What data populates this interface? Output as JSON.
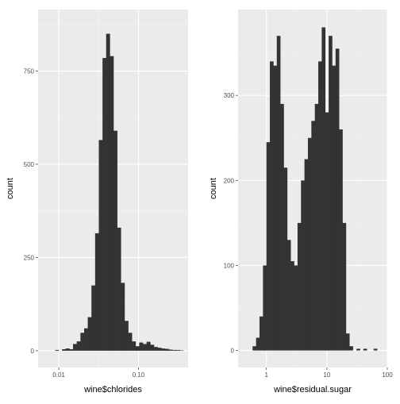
{
  "chart_data": [
    {
      "type": "bar",
      "subtype": "histogram",
      "xlabel": "wine$chlorides",
      "ylabel": "count",
      "x_scale": "log10",
      "xlim": [
        0.0055,
        0.42
      ],
      "ylim": [
        -45,
        915
      ],
      "x_ticks": [
        0.01,
        0.1
      ],
      "x_tick_labels": [
        "0.01",
        "0.10"
      ],
      "y_ticks": [
        0,
        250,
        500,
        750
      ],
      "y_tick_labels": [
        "0",
        "250",
        "500",
        "750"
      ],
      "grid": true,
      "bar_color": "#333333",
      "bins": [
        {
          "x0": 0.009,
          "x1": 0.01,
          "count": 2
        },
        {
          "x0": 0.011,
          "x1": 0.0122,
          "count": 4
        },
        {
          "x0": 0.0122,
          "x1": 0.0136,
          "count": 6
        },
        {
          "x0": 0.0136,
          "x1": 0.0151,
          "count": 4
        },
        {
          "x0": 0.0151,
          "x1": 0.0168,
          "count": 18
        },
        {
          "x0": 0.0168,
          "x1": 0.0187,
          "count": 25
        },
        {
          "x0": 0.0187,
          "x1": 0.0208,
          "count": 48
        },
        {
          "x0": 0.0208,
          "x1": 0.0231,
          "count": 60
        },
        {
          "x0": 0.0231,
          "x1": 0.0257,
          "count": 90
        },
        {
          "x0": 0.0257,
          "x1": 0.0286,
          "count": 175
        },
        {
          "x0": 0.0286,
          "x1": 0.0318,
          "count": 315
        },
        {
          "x0": 0.0318,
          "x1": 0.0354,
          "count": 565
        },
        {
          "x0": 0.0354,
          "x1": 0.0393,
          "count": 785
        },
        {
          "x0": 0.0393,
          "x1": 0.0437,
          "count": 850
        },
        {
          "x0": 0.0437,
          "x1": 0.0486,
          "count": 790
        },
        {
          "x0": 0.0486,
          "x1": 0.0541,
          "count": 590
        },
        {
          "x0": 0.0541,
          "x1": 0.0601,
          "count": 330
        },
        {
          "x0": 0.0601,
          "x1": 0.0669,
          "count": 182
        },
        {
          "x0": 0.0669,
          "x1": 0.0744,
          "count": 80
        },
        {
          "x0": 0.0744,
          "x1": 0.0827,
          "count": 48
        },
        {
          "x0": 0.0827,
          "x1": 0.092,
          "count": 25
        },
        {
          "x0": 0.092,
          "x1": 0.1023,
          "count": 12
        },
        {
          "x0": 0.1023,
          "x1": 0.1138,
          "count": 22
        },
        {
          "x0": 0.1138,
          "x1": 0.1265,
          "count": 18
        },
        {
          "x0": 0.1265,
          "x1": 0.1407,
          "count": 24
        },
        {
          "x0": 0.1407,
          "x1": 0.1564,
          "count": 16
        },
        {
          "x0": 0.1564,
          "x1": 0.174,
          "count": 10
        },
        {
          "x0": 0.174,
          "x1": 0.1935,
          "count": 8
        },
        {
          "x0": 0.1935,
          "x1": 0.2152,
          "count": 6
        },
        {
          "x0": 0.2152,
          "x1": 0.2393,
          "count": 5
        },
        {
          "x0": 0.2393,
          "x1": 0.2661,
          "count": 3
        },
        {
          "x0": 0.2661,
          "x1": 0.296,
          "count": 2
        },
        {
          "x0": 0.296,
          "x1": 0.3291,
          "count": 2
        },
        {
          "x0": 0.3291,
          "x1": 0.366,
          "count": 1
        }
      ]
    },
    {
      "type": "bar",
      "subtype": "histogram",
      "xlabel": "wine$residual.sugar",
      "ylabel": "count",
      "x_scale": "log10",
      "xlim": [
        0.34,
        100
      ],
      "ylim": [
        -20,
        401
      ],
      "x_ticks": [
        1,
        10,
        100
      ],
      "x_tick_labels": [
        "1",
        "10",
        "100"
      ],
      "y_ticks": [
        0,
        100,
        200,
        300
      ],
      "y_tick_labels": [
        "0",
        "100",
        "200",
        "300"
      ],
      "grid": true,
      "bar_color": "#333333",
      "bins": [
        {
          "x0": 0.59,
          "x1": 0.674,
          "count": 5
        },
        {
          "x0": 0.674,
          "x1": 0.769,
          "count": 15
        },
        {
          "x0": 0.769,
          "x1": 0.877,
          "count": 40
        },
        {
          "x0": 0.877,
          "x1": 1.0,
          "count": 100
        },
        {
          "x0": 1.0,
          "x1": 1.141,
          "count": 245
        },
        {
          "x0": 1.141,
          "x1": 1.302,
          "count": 340
        },
        {
          "x0": 1.302,
          "x1": 1.485,
          "count": 335
        },
        {
          "x0": 1.485,
          "x1": 1.694,
          "count": 370
        },
        {
          "x0": 1.694,
          "x1": 1.932,
          "count": 290
        },
        {
          "x0": 1.932,
          "x1": 2.204,
          "count": 215
        },
        {
          "x0": 2.204,
          "x1": 2.515,
          "count": 130
        },
        {
          "x0": 2.515,
          "x1": 2.869,
          "count": 105
        },
        {
          "x0": 2.869,
          "x1": 3.273,
          "count": 100
        },
        {
          "x0": 3.273,
          "x1": 3.734,
          "count": 150
        },
        {
          "x0": 3.734,
          "x1": 4.259,
          "count": 200
        },
        {
          "x0": 4.259,
          "x1": 4.859,
          "count": 225
        },
        {
          "x0": 4.859,
          "x1": 5.543,
          "count": 250
        },
        {
          "x0": 5.543,
          "x1": 6.323,
          "count": 270
        },
        {
          "x0": 6.323,
          "x1": 7.213,
          "count": 290
        },
        {
          "x0": 7.213,
          "x1": 8.228,
          "count": 340
        },
        {
          "x0": 8.228,
          "x1": 9.386,
          "count": 380
        },
        {
          "x0": 9.386,
          "x1": 10.707,
          "count": 280
        },
        {
          "x0": 10.707,
          "x1": 12.214,
          "count": 370
        },
        {
          "x0": 12.214,
          "x1": 13.933,
          "count": 335
        },
        {
          "x0": 13.933,
          "x1": 15.894,
          "count": 355
        },
        {
          "x0": 15.894,
          "x1": 18.131,
          "count": 260
        },
        {
          "x0": 18.131,
          "x1": 20.682,
          "count": 150
        },
        {
          "x0": 20.682,
          "x1": 23.593,
          "count": 20
        },
        {
          "x0": 23.593,
          "x1": 26.914,
          "count": 5
        },
        {
          "x0": 31.0,
          "x1": 35.3,
          "count": 2
        },
        {
          "x0": 40.2,
          "x1": 45.9,
          "count": 2
        },
        {
          "x0": 59.5,
          "x1": 67.9,
          "count": 2
        }
      ]
    }
  ]
}
